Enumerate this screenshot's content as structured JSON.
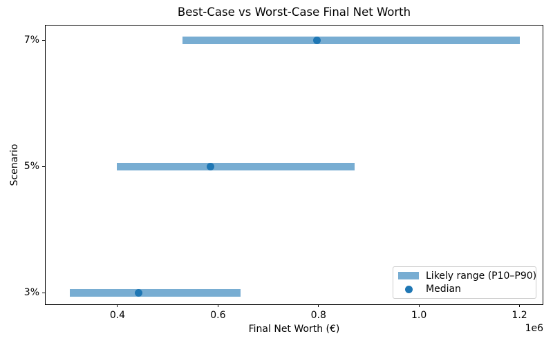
{
  "chart_data": {
    "type": "bar",
    "orientation": "horizontal",
    "title": "Best-Case vs Worst-Case Final Net Worth",
    "xlabel": "Final Net Worth (€)",
    "ylabel": "Scenario",
    "categories": [
      "7%",
      "5%",
      "3%"
    ],
    "series": [
      {
        "name": "Likely range (P10–P90)",
        "type": "range_bar",
        "values": [
          [
            529000,
            1200000
          ],
          [
            399000,
            872000
          ],
          [
            305000,
            645000
          ]
        ]
      },
      {
        "name": "Median",
        "type": "scatter",
        "values": [
          797000,
          585000,
          442000
        ]
      }
    ],
    "xlim": [
      257000,
      1246000
    ],
    "x_ticks": [
      400000,
      600000,
      800000,
      1000000,
      1200000
    ],
    "x_tick_labels": [
      "0.4",
      "0.6",
      "0.8",
      "1.0",
      "1.2"
    ],
    "x_offset_label": "1e6",
    "grid": false,
    "legend_position": "lower right",
    "colors": {
      "range_bar": "#78add2",
      "median": "#1f77b4",
      "spine": "#000000",
      "text": "#000000"
    }
  }
}
